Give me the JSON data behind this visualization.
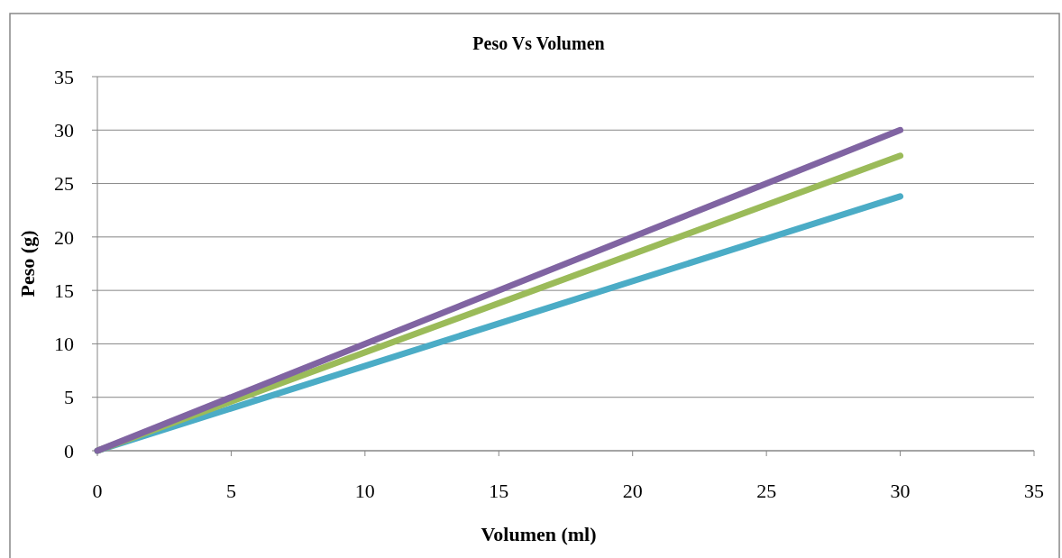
{
  "chart_data": {
    "type": "line",
    "title": "Peso Vs Volumen",
    "xlabel": "Volumen (ml)",
    "ylabel": "Peso (g)",
    "xlim": [
      0,
      35
    ],
    "xticks": [
      0,
      5,
      10,
      15,
      20,
      25,
      30,
      35
    ],
    "ylim": [
      0,
      35
    ],
    "yticks": [
      0,
      5,
      10,
      15,
      20,
      25,
      30,
      35
    ],
    "grid": "y",
    "marker": "none",
    "line_style": "solid",
    "x": [
      0,
      30
    ],
    "series": [
      {
        "color": "#4bacc6",
        "values": [
          0,
          23.8
        ]
      },
      {
        "color": "#9bbb59",
        "values": [
          0,
          27.6
        ]
      },
      {
        "color": "#8064a2",
        "values": [
          0,
          30
        ]
      }
    ]
  }
}
